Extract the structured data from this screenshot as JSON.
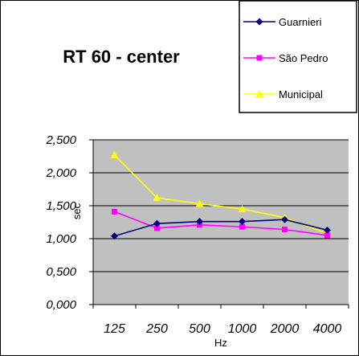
{
  "chart_data": {
    "type": "line",
    "title": "RT 60  -  center",
    "xlabel": "Hz",
    "ylabel": "sec",
    "categories": [
      "125",
      "250",
      "500",
      "1000",
      "2000",
      "4000"
    ],
    "y_ticks": [
      "0,000",
      "0,500",
      "1,000",
      "1,500",
      "2,000",
      "2,500"
    ],
    "ylim": [
      0,
      2.5
    ],
    "grid": true,
    "legend_position": "top-right",
    "plot_background": "#c0c0c0",
    "series": [
      {
        "name": "Guarnieri",
        "color": "#000080",
        "marker": "diamond",
        "values": [
          1.04,
          1.23,
          1.26,
          1.26,
          1.29,
          1.13
        ]
      },
      {
        "name": "São Pedro",
        "color": "#ff00ff",
        "marker": "square",
        "values": [
          1.41,
          1.16,
          1.21,
          1.18,
          1.14,
          1.05
        ]
      },
      {
        "name": "Municipal",
        "color": "#ffff00",
        "marker": "triangle",
        "values": [
          2.27,
          1.62,
          1.53,
          1.45,
          1.32,
          1.08
        ]
      }
    ]
  }
}
